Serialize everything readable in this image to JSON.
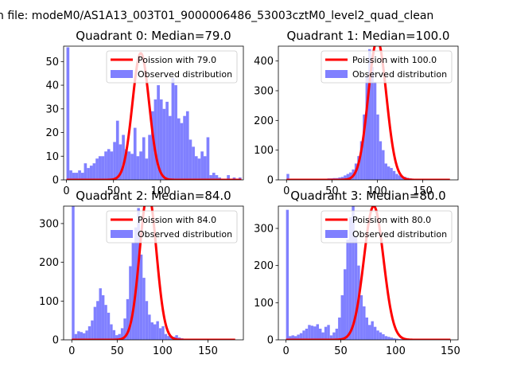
{
  "figure_title": "n file: modeM0/AS1A13_003T01_9000006486_53003cztM0_level2_quad_clean",
  "colors": {
    "observed": "#8080ff",
    "poisson": "#ff0000",
    "axis": "#000000",
    "background": "#ffffff"
  },
  "chart_data": [
    {
      "type": "bar",
      "title": "Quadrant 0: Median=79.0",
      "legend": [
        "Poission with 79.0",
        "Observed distribution"
      ],
      "legend_position": "upper-right",
      "median": 79.0,
      "poisson_peak": 53.5,
      "xlim": [
        -3,
        188
      ],
      "ylim": [
        0,
        56.5
      ],
      "xticks": [
        0,
        50,
        100
      ],
      "yticks": [
        0,
        10,
        20,
        30,
        40,
        50
      ],
      "bin_edges": [
        0,
        186
      ],
      "values": [
        56,
        4,
        3,
        3,
        4,
        3,
        7,
        5,
        6,
        7,
        9,
        10,
        10,
        12,
        13,
        12,
        16,
        25,
        15,
        19,
        13,
        12,
        11,
        22,
        10,
        12,
        18,
        9,
        19,
        29,
        34,
        40,
        34,
        30,
        33,
        27,
        43,
        40,
        26,
        24,
        27,
        29,
        17,
        14,
        10,
        9,
        12,
        10,
        18,
        2,
        3,
        2,
        1,
        0,
        0,
        2,
        0,
        1,
        0,
        1
      ]
    },
    {
      "type": "bar",
      "title": "Quadrant 1: Median=100.0",
      "legend": [
        "Poission with 100.0",
        "Observed distribution"
      ],
      "legend_position": "upper-right",
      "median": 100.0,
      "poisson_peak": 470,
      "xlim": [
        -9,
        189
      ],
      "ylim": [
        0,
        450
      ],
      "xticks": [
        0,
        50,
        100,
        150
      ],
      "yticks": [
        0,
        100,
        200,
        300,
        400
      ],
      "bin_edges": [
        0,
        180
      ],
      "values": [
        20,
        2,
        2,
        1,
        1,
        1,
        2,
        1,
        2,
        1,
        3,
        2,
        3,
        3,
        4,
        5,
        5,
        6,
        6,
        8,
        10,
        15,
        20,
        25,
        35,
        55,
        80,
        130,
        220,
        350,
        440,
        380,
        330,
        220,
        130,
        100,
        55,
        45,
        40,
        30,
        20,
        15,
        12,
        10,
        7,
        5,
        4,
        3,
        2,
        1,
        1,
        1,
        1,
        1,
        0,
        0,
        0,
        0,
        0,
        0
      ]
    },
    {
      "type": "bar",
      "title": "Quadrant 2: Median=84.0",
      "legend": [
        "Poission with 84.0",
        "Observed distribution"
      ],
      "legend_position": "upper-right",
      "median": 84.0,
      "poisson_peak": 380,
      "xlim": [
        -9,
        189
      ],
      "ylim": [
        0,
        345
      ],
      "xticks": [
        0,
        50,
        100,
        150
      ],
      "yticks": [
        0,
        100,
        200,
        300
      ],
      "bin_edges": [
        0,
        180
      ],
      "values": [
        345,
        15,
        22,
        20,
        17,
        24,
        35,
        50,
        85,
        100,
        133,
        115,
        90,
        70,
        40,
        25,
        12,
        15,
        30,
        55,
        105,
        190,
        250,
        290,
        340,
        220,
        160,
        100,
        65,
        45,
        40,
        48,
        30,
        35,
        15,
        10,
        10,
        8,
        12,
        6,
        4,
        3,
        3,
        2,
        2,
        2,
        2,
        1,
        1,
        0,
        1,
        0,
        0,
        0,
        0,
        0,
        0,
        0,
        0,
        0
      ]
    },
    {
      "type": "bar",
      "title": "Quadrant 3: Median=80.0",
      "legend": [
        "Poission with 80.0",
        "Observed distribution"
      ],
      "legend_position": "upper-right",
      "median": 80.0,
      "poisson_peak": 360,
      "xlim": [
        -7,
        157
      ],
      "ylim": [
        0,
        360
      ],
      "xticks": [
        0,
        50,
        100,
        150
      ],
      "yticks": [
        0,
        100,
        200,
        300
      ],
      "bin_edges": [
        0,
        150
      ],
      "values": [
        350,
        10,
        12,
        10,
        14,
        18,
        25,
        30,
        40,
        38,
        36,
        42,
        30,
        20,
        35,
        40,
        12,
        20,
        30,
        60,
        120,
        190,
        270,
        330,
        360,
        280,
        200,
        120,
        90,
        60,
        40,
        50,
        35,
        25,
        20,
        15,
        10,
        8,
        6,
        4,
        3,
        2,
        2,
        1,
        1,
        1,
        1,
        1,
        1,
        1,
        1,
        1,
        1,
        1,
        1,
        1,
        1,
        1,
        1,
        1
      ]
    }
  ]
}
